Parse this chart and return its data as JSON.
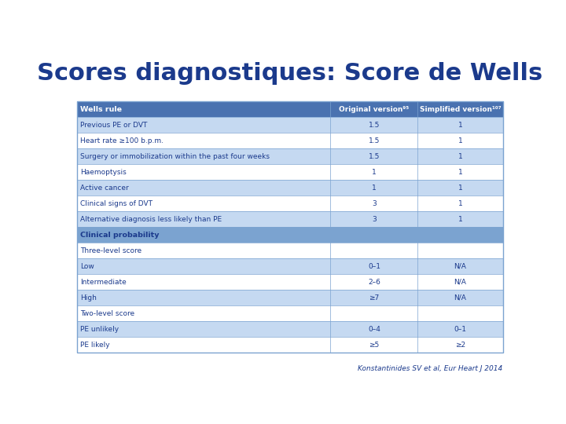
{
  "title": "Scores diagnostiques: Score de Wells",
  "title_color": "#1B3A8C",
  "title_fontsize": 22,
  "subtitle": "Konstantinides SV et al, Eur Heart J 2014",
  "header_bg": "#4A72B0",
  "header_text_color": "#FFFFFF",
  "section_bg": "#7BA3D0",
  "subsection_bg": "#FFFFFF",
  "row_bg_light": "#C5D9F1",
  "row_bg_white": "#FFFFFF",
  "row_bg_blue_light": "#DAE8F5",
  "text_color": "#1B3A8C",
  "border_color": "#7BA3D0",
  "rows": [
    {
      "label": "Previous PE or DVT",
      "orig": "1.5",
      "simp": "1",
      "type": "data_light"
    },
    {
      "label": "Heart rate ≥100 b.p.m.",
      "orig": "1.5",
      "simp": "1",
      "type": "data_white"
    },
    {
      "label": "Surgery or immobilization within the past four weeks",
      "orig": "1.5",
      "simp": "1",
      "type": "data_light"
    },
    {
      "label": "Haemoptysis",
      "orig": "1",
      "simp": "1",
      "type": "data_white"
    },
    {
      "label": "Active cancer",
      "orig": "1",
      "simp": "1",
      "type": "data_light"
    },
    {
      "label": "Clinical signs of DVT",
      "orig": "3",
      "simp": "1",
      "type": "data_white"
    },
    {
      "label": "Alternative diagnosis less likely than PE",
      "orig": "3",
      "simp": "1",
      "type": "data_light"
    },
    {
      "label": "Clinical probability",
      "orig": "",
      "simp": "",
      "type": "section"
    },
    {
      "label": "Three-level score",
      "orig": "",
      "simp": "",
      "type": "subsection"
    },
    {
      "label": "Low",
      "orig": "0–1",
      "simp": "N/A",
      "type": "data_light"
    },
    {
      "label": "Intermediate",
      "orig": "2–6",
      "simp": "N/A",
      "type": "data_white"
    },
    {
      "label": "High",
      "orig": "≥7",
      "simp": "N/A",
      "type": "data_light"
    },
    {
      "label": "Two-level score",
      "orig": "",
      "simp": "",
      "type": "subsection"
    },
    {
      "label": "PE unlikely",
      "orig": "0–4",
      "simp": "0–1",
      "type": "data_light"
    },
    {
      "label": "PE likely",
      "orig": "≥5",
      "simp": "≥2",
      "type": "data_white"
    }
  ],
  "background_color": "#FFFFFF"
}
